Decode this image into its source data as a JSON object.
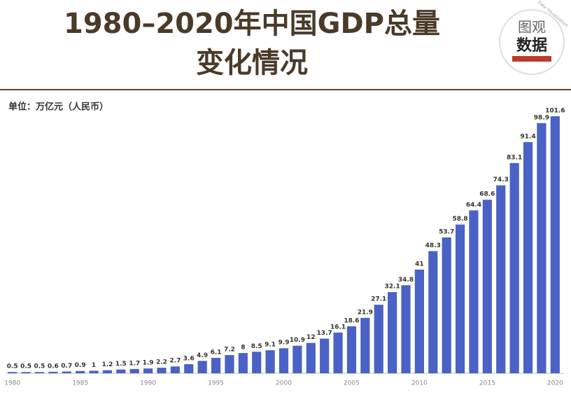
{
  "chart_data": {
    "type": "bar",
    "title": [
      "1980–2020年中国GDP总量",
      "变化情况"
    ],
    "subtitle": "单位：万亿元（人民币）",
    "logo": {
      "top": "图观",
      "bottom": "数据",
      "ring": "Data Visualization"
    },
    "categories": [
      "1980",
      null,
      null,
      null,
      null,
      "1985",
      null,
      null,
      null,
      null,
      "1990",
      null,
      null,
      null,
      null,
      "1995",
      null,
      null,
      null,
      null,
      "2000",
      null,
      null,
      null,
      null,
      "2005",
      null,
      null,
      null,
      null,
      "2010",
      null,
      null,
      null,
      null,
      "2015",
      null,
      null,
      null,
      null,
      "2020"
    ],
    "values": [
      0.5,
      0.5,
      0.5,
      0.6,
      0.7,
      0.9,
      1,
      1.2,
      1.5,
      1.7,
      1.9,
      2.2,
      2.7,
      3.6,
      4.9,
      6.1,
      7.2,
      8,
      8.5,
      9.1,
      9.9,
      10.9,
      12,
      13.7,
      16.1,
      18.6,
      21.9,
      27.1,
      32.1,
      34.8,
      41,
      48.3,
      53.7,
      58.8,
      64.4,
      68.6,
      74.3,
      83.1,
      91.4,
      98.9,
      101.6
    ],
    "color": "#4a62c6"
  }
}
